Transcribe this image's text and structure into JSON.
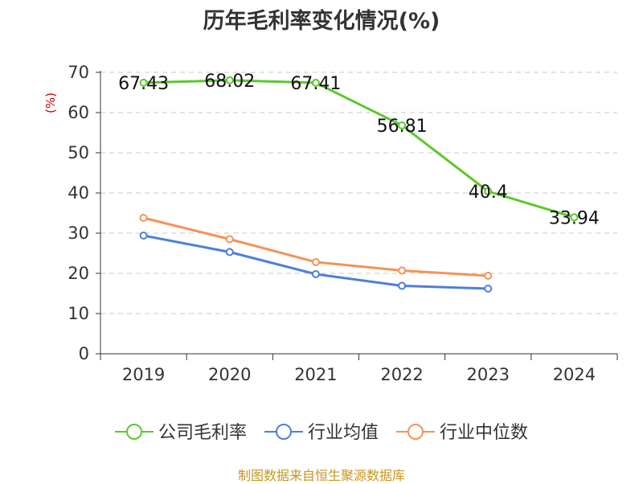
{
  "chart_data": {
    "type": "line",
    "title": "历年毛利率变化情况(%)",
    "ylabel": "(%)",
    "xlabel": "",
    "categories": [
      "2019",
      "2020",
      "2021",
      "2022",
      "2023",
      "2024"
    ],
    "ylim": [
      0,
      70
    ],
    "yticks": [
      0,
      10,
      20,
      30,
      40,
      50,
      60,
      70
    ],
    "grid": true,
    "legend_position": "bottom",
    "series": [
      {
        "name": "公司毛利率",
        "color": "#5cc82d",
        "values": [
          67.43,
          68.02,
          67.41,
          56.81,
          40.4,
          33.94
        ],
        "labels": [
          "67.43",
          "68.02",
          "67.41",
          "56.81",
          "40.4",
          "33.94"
        ]
      },
      {
        "name": "行业均值",
        "color": "#4f7fd9",
        "values": [
          29.4,
          25.3,
          19.8,
          16.9,
          16.2,
          null
        ],
        "labels": null
      },
      {
        "name": "行业中位数",
        "color": "#f4935a",
        "values": [
          33.8,
          28.5,
          22.8,
          20.7,
          19.4,
          null
        ],
        "labels": null
      }
    ]
  },
  "source": "制图数据来自恒生聚源数据库"
}
